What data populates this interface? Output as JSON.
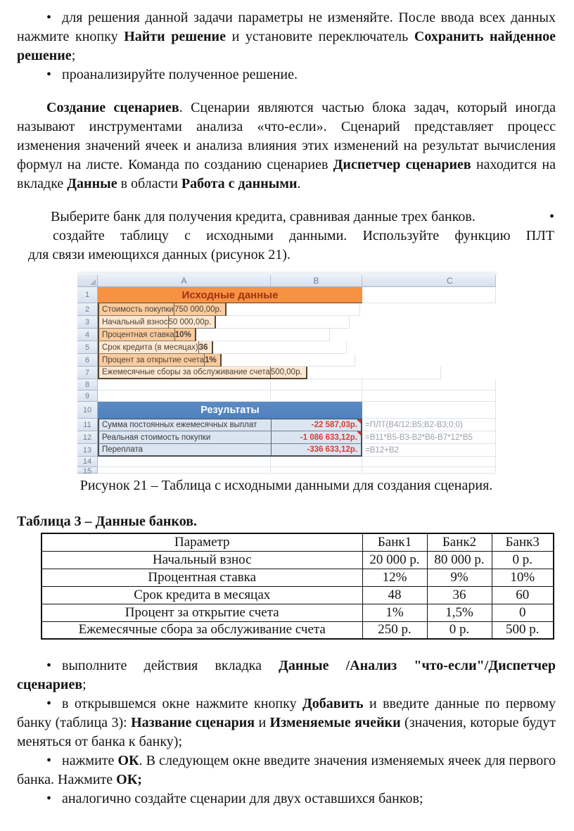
{
  "glyphs": {
    "bullet": "•"
  },
  "paragraphs": {
    "solver": {
      "runs": [
        {
          "text": "для решения данной задачи параметры не изменяйте. После ввода всех данных нажмите кнопку "
        },
        {
          "text": "Найти решение",
          "bold": true
        },
        {
          "text": " и установите переключатель "
        },
        {
          "text": "Сохранить найденное решение",
          "bold": true
        },
        {
          "text": ";"
        }
      ]
    },
    "analyze": {
      "runs": [
        {
          "text": "проанализируйте полученное решение."
        }
      ]
    },
    "scenarios": {
      "runs": [
        {
          "text": "Создание сценариев",
          "bold": true
        },
        {
          "text": ". Сценарии являются частью блока задач, который иногда называют инструментами анализа «что-если». Сценарий представляет процесс изменения значений ячеек и анализа влияния этих изменений на результат вычисления формул на листе. Команда по созданию сценариев "
        },
        {
          "text": "Диспетчер сценариев",
          "bold": true
        },
        {
          "text": " находится на вкладке "
        },
        {
          "text": "Данные",
          "bold": true
        },
        {
          "text": " в области "
        },
        {
          "text": "Работа с данными",
          "bold": true
        },
        {
          "text": "."
        }
      ]
    },
    "bank_choice": {
      "line1": "Выберите банк для получения кредита, сравнивая данные трех банков.",
      "line2": "создайте таблицу с исходными данными. Используйте функцию ПЛТ",
      "line3": "для связи имеющихся данных (рисунок 21)."
    },
    "tab_data": {
      "runs": [
        {
          "text": "выполните действия вкладка "
        },
        {
          "text": "Данные /Анализ \"что-если\"/Диспетчер сценариев",
          "bold": true
        },
        {
          "text": ";"
        }
      ]
    },
    "add_bank": {
      "runs": [
        {
          "text": "в открывшемся окне нажмите кнопку "
        },
        {
          "text": "Добавить",
          "bold": true
        },
        {
          "text": " и введите данные по первому банку (таблица 3): "
        },
        {
          "text": "Название сценария",
          "bold": true
        },
        {
          "text": " и "
        },
        {
          "text": "Изменяемые ячейки",
          "bold": true
        },
        {
          "text": " (значения, которые будут меняться от банка к банку);"
        }
      ]
    },
    "press_ok": {
      "runs": [
        {
          "text": "нажмите "
        },
        {
          "text": "ОК",
          "bold": true
        },
        {
          "text": ". В следующем окне введите значения изменяемых ячеек для первого банка. Нажмите "
        },
        {
          "text": "ОК;",
          "bold": true
        }
      ]
    },
    "similar": {
      "runs": [
        {
          "text": "аналогично создайте сценарии для двух оставшихся банков;"
        }
      ]
    }
  },
  "spreadsheet": {
    "col_headers": [
      "A",
      "B",
      "C"
    ],
    "colors": {
      "header_orange": "#F69244",
      "header_orange_text": "#A33110",
      "band_dark": "#F9CB9E",
      "band_light": "#FDE7D2",
      "results_blue": "#4F81BD",
      "result_row_bg": "#DBE5F1",
      "value_red": "#E03A2E",
      "formula_gray": "#9AA0A8"
    },
    "rows": [
      {
        "n": "1",
        "type": "title",
        "text": "Исходные данные"
      },
      {
        "n": "2",
        "type": "data",
        "label": "Стоимость покупки",
        "value": "750 000,00р."
      },
      {
        "n": "3",
        "type": "data",
        "label": "Начальный взнос",
        "value": "50 000,00р."
      },
      {
        "n": "4",
        "type": "data",
        "label": "Процентная ставка",
        "value": "10%",
        "value_bold": true
      },
      {
        "n": "5",
        "type": "data",
        "label": "Срок кредита (в месяцах)",
        "value": "36",
        "value_bold": true
      },
      {
        "n": "6",
        "type": "data",
        "label": "Процент за открытие счета",
        "value": "1%",
        "value_bold": true
      },
      {
        "n": "7",
        "type": "data",
        "label": "Ежемесячные сборы за обслуживание счета",
        "value": "500,00р."
      },
      {
        "n": "8",
        "type": "empty"
      },
      {
        "n": "9",
        "type": "empty"
      },
      {
        "n": "10",
        "type": "results_title",
        "text": "Результаты"
      },
      {
        "n": "11",
        "type": "result",
        "label": "Сумма постоянных ежемесячных выплат",
        "value": "-22 587,03р.",
        "formula": "=ПЛТ(B4/12;B5;B2-B3;0;0)",
        "marker": true
      },
      {
        "n": "12",
        "type": "result",
        "label": "Реальная стоимость покупки",
        "value": "-1 086 633,12р.",
        "formula": "=B11*B5-B3-B2*B6-B7*12*B5",
        "marker": true
      },
      {
        "n": "13",
        "type": "result",
        "label": "Переплата",
        "value": "-336 633,12р.",
        "formula": "=B12+B2"
      },
      {
        "n": "14",
        "type": "empty"
      },
      {
        "n": "15",
        "type": "empty"
      }
    ]
  },
  "caption": "Рисунок 21 – Таблица с исходными данными для создания сценария.",
  "table3": {
    "title": "Таблица 3 – Данные банков.",
    "headers": [
      "Параметр",
      "Банк1",
      "Банк2",
      "Банк3"
    ],
    "rows": [
      [
        "Начальный взнос",
        "20 000 р.",
        "80 000 р.",
        "0 р."
      ],
      [
        "Процентная ставка",
        "12%",
        "9%",
        "10%"
      ],
      [
        "Срок кредита в месяцах",
        "48",
        "36",
        "60"
      ],
      [
        "Процент за открытие счета",
        "1%",
        "1,5%",
        "0"
      ],
      [
        "Ежемесячные сбора за обслуживание счета",
        "250 р.",
        "0 р.",
        "500 р."
      ]
    ]
  }
}
